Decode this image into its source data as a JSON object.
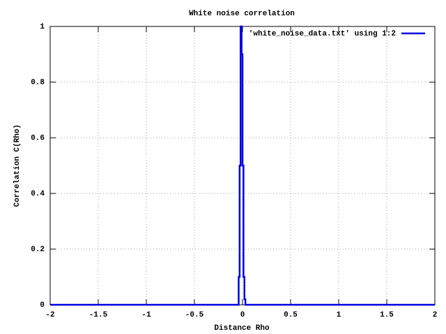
{
  "chart_data": {
    "type": "line",
    "title": "White noise correlation",
    "x_label": "Distance Rho",
    "y_label": "Correlation C(Rho)",
    "x": [
      -2,
      -0.04,
      -0.04,
      -0.03,
      -0.03,
      -0.02,
      -0.02,
      -0.01,
      -0.01,
      0,
      0,
      0.01,
      0.01,
      0.02,
      0.02,
      0.03,
      0.03,
      2
    ],
    "series": [
      {
        "name": "'white_noise_data.txt' using 1:2",
        "color": "#0000e0",
        "values": [
          0,
          0,
          0.1,
          0.1,
          0.5,
          0.5,
          1,
          1,
          0.9,
          0.9,
          0.5,
          0.5,
          0.1,
          0.1,
          0.02,
          0.02,
          0,
          0
        ]
      }
    ],
    "xlim": [
      -2,
      2
    ],
    "xticks": [
      -2,
      -1.5,
      -1,
      -0.5,
      0,
      0.5,
      1,
      1.5,
      2
    ],
    "ylim": [
      0,
      1
    ],
    "yticks": [
      0,
      0.2,
      0.4,
      0.6,
      0.8,
      1
    ],
    "grid": true,
    "legend": "top-right"
  }
}
